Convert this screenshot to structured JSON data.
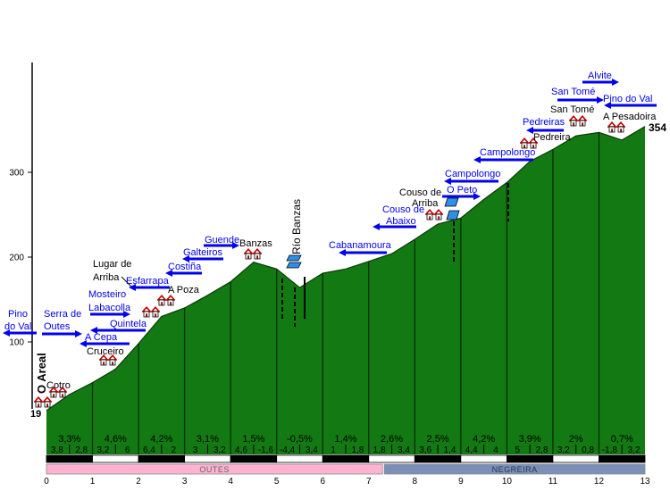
{
  "chart_data": {
    "type": "area",
    "title": "",
    "xlabel": "",
    "ylabel": "",
    "xlim": [
      0,
      13
    ],
    "x_ticks": [
      "0",
      "1",
      "2",
      "3",
      "4",
      "5",
      "6",
      "7",
      "8",
      "9",
      "10",
      "11",
      "12",
      "13"
    ],
    "y_ticks": [
      "100",
      "200",
      "300"
    ],
    "profile": {
      "x": [
        0,
        0.5,
        1,
        1.5,
        2,
        2.5,
        3,
        3.5,
        4,
        4.5,
        5,
        5.5,
        6,
        6.5,
        7,
        7.5,
        8,
        8.5,
        9,
        9.5,
        10,
        10.5,
        11,
        11.5,
        12,
        12.5,
        13
      ],
      "y": [
        19,
        38,
        52,
        68,
        98,
        130,
        140,
        155,
        171,
        194,
        186,
        164,
        181,
        186,
        195,
        204,
        221,
        239,
        246,
        268,
        288,
        313,
        327,
        343,
        347,
        338,
        354
      ]
    },
    "start_label": "19",
    "end_label": "354",
    "segments": [
      {
        "grade": "3,3%",
        "half1": "3,8",
        "half2": "2,8"
      },
      {
        "grade": "4,6%",
        "half1": "3,2",
        "half2": "6"
      },
      {
        "grade": "4,2%",
        "half1": "6,4",
        "half2": "2"
      },
      {
        "grade": "3,1%",
        "half1": "3",
        "half2": "3,2"
      },
      {
        "grade": "1,5%",
        "half1": "4,6",
        "half2": "-1,6"
      },
      {
        "grade": "-0,5%",
        "half1": "-4,4",
        "half2": "3,4"
      },
      {
        "grade": "1,4%",
        "half1": "1",
        "half2": "1,8"
      },
      {
        "grade": "2,6%",
        "half1": "1,8",
        "half2": "3,4"
      },
      {
        "grade": "2,5%",
        "half1": "3,6",
        "half2": "1,4"
      },
      {
        "grade": "4,2%",
        "half1": "4,4",
        "half2": "4"
      },
      {
        "grade": "3,9%",
        "half1": "5",
        "half2": "2,8"
      },
      {
        "grade": "2%",
        "half1": "3,2",
        "half2": "0,8"
      },
      {
        "grade": "0,7%",
        "half1": "-1,8",
        "half2": "3,2"
      }
    ],
    "sections": [
      {
        "name": "OUTES",
        "from_km": 0,
        "to_km": 7.3
      },
      {
        "name": "NEGREIRA",
        "from_km": 7.3,
        "to_km": 13
      }
    ],
    "places_on_route": [
      {
        "lines": [
          "O Areal"
        ],
        "icon": "house-icon"
      },
      {
        "lines": [
          "Cotro"
        ],
        "icon": "house-icon"
      },
      {
        "lines": [
          "Cruceiro"
        ],
        "icon": "house-icon"
      },
      {
        "lines": [
          "Lugar de",
          "Arriba"
        ],
        "icon": "house-icon"
      },
      {
        "lines": [
          "A Poza"
        ],
        "icon": "house-icon"
      },
      {
        "lines": [
          "Banzas"
        ],
        "icon": "house-icon"
      },
      {
        "lines": [
          "Couso de",
          "Arriba"
        ],
        "icon": "house-icon"
      },
      {
        "lines": [
          "Pedreira"
        ],
        "icon": "house-icon"
      },
      {
        "lines": [
          "San Tomé"
        ],
        "icon": "house-icon"
      },
      {
        "lines": [
          "A Pesadoira"
        ],
        "icon": "house-icon"
      }
    ],
    "river": {
      "name": "Río Banzas",
      "icon": "river-icon"
    },
    "places_nearby": [
      {
        "lines": [
          "Pino",
          "do Val"
        ],
        "arrow_icon": "left-arrow-icon"
      },
      {
        "lines": [
          "Serra de",
          "Outes"
        ],
        "arrow_icon": "right-arrow-icon"
      },
      {
        "lines": [
          "A Cepa"
        ],
        "arrow_icon": "left-arrow-icon"
      },
      {
        "lines": [
          "Quintela"
        ],
        "arrow_icon": "left-arrow-icon"
      },
      {
        "lines": [
          "Mosteiro",
          "Labacolla"
        ],
        "arrow_icon": "right-arrow-icon"
      },
      {
        "lines": [
          "Esfarrapa"
        ],
        "arrow_icon": "left-arrow-icon"
      },
      {
        "lines": [
          "Costiña"
        ],
        "arrow_icon": "left-arrow-icon"
      },
      {
        "lines": [
          "Galteiros"
        ],
        "arrow_icon": "left-arrow-icon"
      },
      {
        "lines": [
          "Guende"
        ],
        "arrow_icon": "right-arrow-icon"
      },
      {
        "lines": [
          "Cabanamoura"
        ],
        "arrow_icon": "left-arrow-icon"
      },
      {
        "lines": [
          "Couso de",
          "Abaixo"
        ],
        "arrow_icon": "left-arrow-icon"
      },
      {
        "lines": [
          "O Peto"
        ],
        "arrow_icon": "right-arrow-icon"
      },
      {
        "lines": [
          "Campolongo"
        ],
        "arrow_icon": "left-arrow-icon"
      },
      {
        "lines": [
          "Campolongo"
        ],
        "arrow_icon": "left-arrow-icon"
      },
      {
        "lines": [
          "Pedreiras"
        ],
        "arrow_icon": "left-arrow-icon"
      },
      {
        "lines": [
          "San Tomé"
        ],
        "arrow_icon": "right-arrow-icon"
      },
      {
        "lines": [
          "Alvite"
        ],
        "arrow_icon": "right-arrow-icon"
      },
      {
        "lines": [
          "Pino do Val"
        ],
        "arrow_icon": "left-arrow-icon"
      }
    ],
    "colors": {
      "terrain": "#137a13",
      "terrain_edge": "#0a3a0a",
      "km_line": "#083308",
      "nearby_label": "#0000ee",
      "route_label": "#000000",
      "river": "#2f8fe8",
      "outes_band": "#ffb3d1",
      "negreira_band": "#7b8fb8"
    }
  }
}
